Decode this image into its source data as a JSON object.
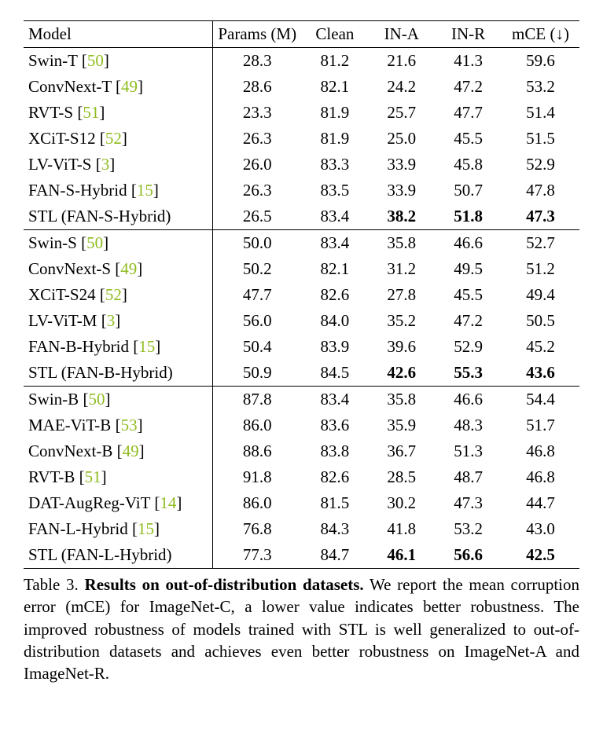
{
  "columns": {
    "model": "Model",
    "params": "Params (M)",
    "clean": "Clean",
    "ina": "IN-A",
    "inr": "IN-R",
    "mce": "mCE (↓)"
  },
  "groups": [
    {
      "rows": [
        {
          "name": "Swin-T",
          "ref": "50",
          "params": "28.3",
          "clean": "81.2",
          "ina": "21.6",
          "inr": "41.3",
          "mce": "59.6"
        },
        {
          "name": "ConvNext-T",
          "ref": "49",
          "params": "28.6",
          "clean": "82.1",
          "ina": "24.2",
          "inr": "47.2",
          "mce": "53.2"
        },
        {
          "name": "RVT-S",
          "ref": "51",
          "params": "23.3",
          "clean": "81.9",
          "ina": "25.7",
          "inr": "47.7",
          "mce": "51.4"
        },
        {
          "name": "XCiT-S12",
          "ref": "52",
          "params": "26.3",
          "clean": "81.9",
          "ina": "25.0",
          "inr": "45.5",
          "mce": "51.5"
        },
        {
          "name": "LV-ViT-S",
          "ref": "3",
          "params": "26.0",
          "clean": "83.3",
          "ina": "33.9",
          "inr": "45.8",
          "mce": "52.9"
        },
        {
          "name": "FAN-S-Hybrid",
          "ref": "15",
          "params": "26.3",
          "clean": "83.5",
          "ina": "33.9",
          "inr": "50.7",
          "mce": "47.8"
        },
        {
          "name": "STL (FAN-S-Hybrid)",
          "ref": "",
          "params": "26.5",
          "clean": "83.4",
          "ina": "38.2",
          "inr": "51.8",
          "mce": "47.3",
          "bold": [
            "ina",
            "inr",
            "mce"
          ]
        }
      ]
    },
    {
      "rows": [
        {
          "name": "Swin-S",
          "ref": "50",
          "params": "50.0",
          "clean": "83.4",
          "ina": "35.8",
          "inr": "46.6",
          "mce": "52.7"
        },
        {
          "name": "ConvNext-S",
          "ref": "49",
          "params": "50.2",
          "clean": "82.1",
          "ina": "31.2",
          "inr": "49.5",
          "mce": "51.2"
        },
        {
          "name": "XCiT-S24",
          "ref": "52",
          "params": "47.7",
          "clean": "82.6",
          "ina": "27.8",
          "inr": "45.5",
          "mce": "49.4"
        },
        {
          "name": "LV-ViT-M",
          "ref": "3",
          "params": "56.0",
          "clean": "84.0",
          "ina": "35.2",
          "inr": "47.2",
          "mce": "50.5"
        },
        {
          "name": "FAN-B-Hybrid",
          "ref": "15",
          "params": "50.4",
          "clean": "83.9",
          "ina": "39.6",
          "inr": "52.9",
          "mce": "45.2"
        },
        {
          "name": "STL (FAN-B-Hybrid)",
          "ref": "",
          "params": "50.9",
          "clean": "84.5",
          "ina": "42.6",
          "inr": "55.3",
          "mce": "43.6",
          "bold": [
            "ina",
            "inr",
            "mce"
          ]
        }
      ]
    },
    {
      "rows": [
        {
          "name": "Swin-B",
          "ref": "50",
          "params": "87.8",
          "clean": "83.4",
          "ina": "35.8",
          "inr": "46.6",
          "mce": "54.4"
        },
        {
          "name": "MAE-ViT-B",
          "ref": "53",
          "params": "86.0",
          "clean": "83.6",
          "ina": "35.9",
          "inr": "48.3",
          "mce": "51.7"
        },
        {
          "name": "ConvNext-B",
          "ref": "49",
          "params": "88.6",
          "clean": "83.8",
          "ina": "36.7",
          "inr": "51.3",
          "mce": "46.8"
        },
        {
          "name": "RVT-B",
          "ref": "51",
          "params": "91.8",
          "clean": "82.6",
          "ina": "28.5",
          "inr": "48.7",
          "mce": "46.8"
        },
        {
          "name": "DAT-AugReg-ViT",
          "ref": "14",
          "params": "86.0",
          "clean": "81.5",
          "ina": "30.2",
          "inr": "47.3",
          "mce": "44.7"
        },
        {
          "name": "FAN-L-Hybrid",
          "ref": "15",
          "params": "76.8",
          "clean": "84.3",
          "ina": "41.8",
          "inr": "53.2",
          "mce": "43.0"
        },
        {
          "name": "STL (FAN-L-Hybrid)",
          "ref": "",
          "params": "77.3",
          "clean": "84.7",
          "ina": "46.1",
          "inr": "56.6",
          "mce": "42.5",
          "bold": [
            "ina",
            "inr",
            "mce"
          ]
        }
      ]
    }
  ],
  "caption": {
    "label": "Table 3.",
    "title": "Results on out-of-distribution datasets.",
    "body": "We report the mean corruption error (mCE) for ImageNet-C, a lower value indicates better robustness. The improved robustness of models trained with STL is well generalized to out-of-distribution datasets and achieves even better robustness on ImageNet-A and ImageNet-R."
  }
}
